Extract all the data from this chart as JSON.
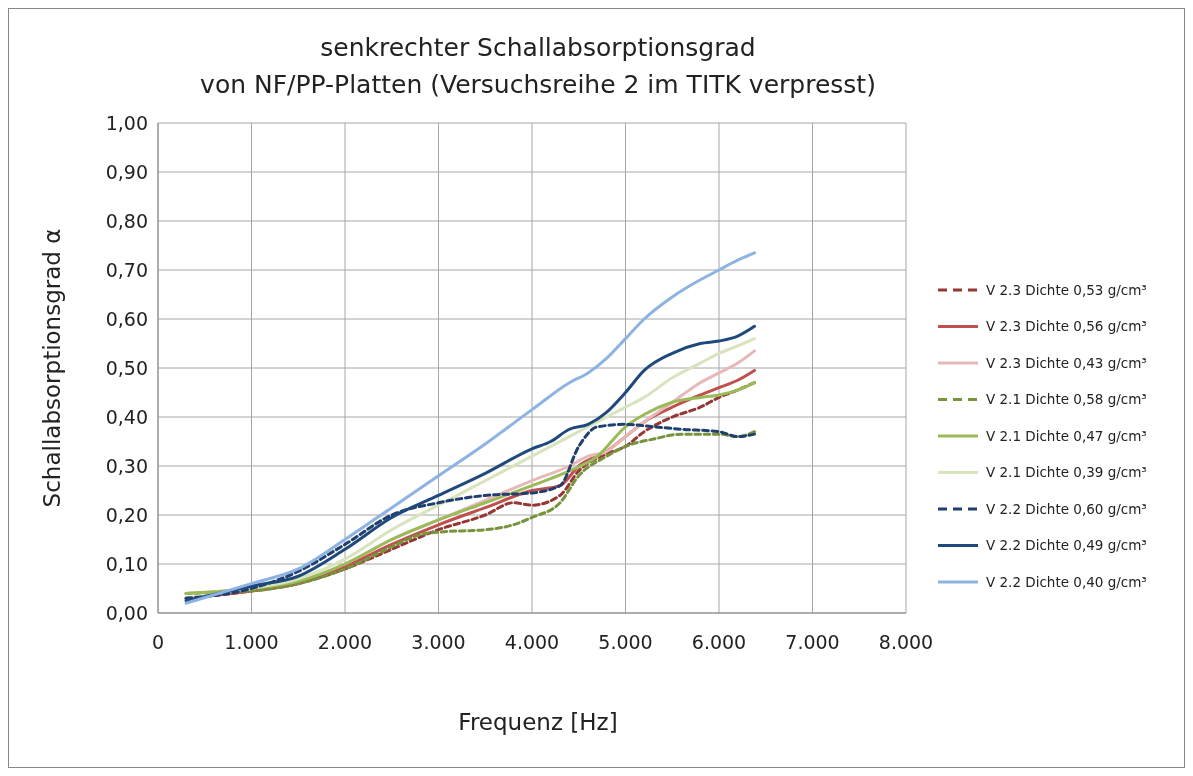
{
  "chart_data": {
    "type": "line",
    "title": "senkrechter Schallabsorptionsgrad\nvon NF/PP-Platten (Versuchsreihe 2 im TITK verpresst)",
    "xlabel": "Frequenz [Hz]",
    "ylabel": "Schallabsorptionsgrad  α",
    "xlim": [
      0,
      8000
    ],
    "xticks": [
      {
        "value": 0,
        "label": "0"
      },
      {
        "value": 1000,
        "label": "1.000"
      },
      {
        "value": 2000,
        "label": "2.000"
      },
      {
        "value": 3000,
        "label": "3.000"
      },
      {
        "value": 4000,
        "label": "4.000"
      },
      {
        "value": 5000,
        "label": "5.000"
      },
      {
        "value": 6000,
        "label": "6.000"
      },
      {
        "value": 7000,
        "label": "7.000"
      },
      {
        "value": 8000,
        "label": "8.000"
      }
    ],
    "ylim": [
      0,
      1
    ],
    "yticks": [
      {
        "value": 0,
        "label": "0,00"
      },
      {
        "value": 0.1,
        "label": "0,10"
      },
      {
        "value": 0.2,
        "label": "0,20"
      },
      {
        "value": 0.3,
        "label": "0,30"
      },
      {
        "value": 0.4,
        "label": "0,40"
      },
      {
        "value": 0.5,
        "label": "0,50"
      },
      {
        "value": 0.6,
        "label": "0,60"
      },
      {
        "value": 0.7,
        "label": "0,70"
      },
      {
        "value": 0.8,
        "label": "0,80"
      },
      {
        "value": 0.9,
        "label": "0,90"
      },
      {
        "value": 1,
        "label": "1,00"
      }
    ],
    "grid": true,
    "legend": "right",
    "marker": "none",
    "series": [
      {
        "name": "V 2.3 Dichte 0,53 g/cm³",
        "color": "#953735",
        "line_style": "dashed",
        "x": [
          300,
          1000,
          1500,
          2000,
          2500,
          3000,
          3500,
          3800,
          4000,
          4300,
          4500,
          4800,
          5000,
          5200,
          5500,
          5800,
          6000,
          6200,
          6380
        ],
        "values": [
          0.03,
          0.045,
          0.06,
          0.09,
          0.13,
          0.17,
          0.2,
          0.225,
          0.22,
          0.24,
          0.29,
          0.325,
          0.34,
          0.37,
          0.4,
          0.42,
          0.44,
          0.455,
          0.47
        ]
      },
      {
        "name": "V 2.3 Dichte 0,56 g/cm³",
        "color": "#c0504d",
        "line_style": "solid",
        "x": [
          300,
          1000,
          1500,
          2000,
          2500,
          3000,
          3500,
          4000,
          4300,
          4500,
          4800,
          5000,
          5200,
          5500,
          5800,
          6000,
          6200,
          6380
        ],
        "values": [
          0.03,
          0.045,
          0.06,
          0.095,
          0.14,
          0.18,
          0.215,
          0.25,
          0.26,
          0.3,
          0.33,
          0.36,
          0.39,
          0.42,
          0.445,
          0.46,
          0.475,
          0.495
        ]
      },
      {
        "name": "V 2.3 Dichte 0,43 g/cm³",
        "color": "#e6b9b8",
        "line_style": "solid",
        "x": [
          300,
          1000,
          1500,
          2000,
          2500,
          3000,
          3500,
          4000,
          4400,
          4600,
          4800,
          5000,
          5200,
          5500,
          5800,
          6000,
          6200,
          6380
        ],
        "values": [
          0.04,
          0.05,
          0.065,
          0.1,
          0.15,
          0.19,
          0.23,
          0.27,
          0.3,
          0.32,
          0.33,
          0.36,
          0.39,
          0.43,
          0.47,
          0.49,
          0.51,
          0.535
        ]
      },
      {
        "name": "V 2.1 Dichte 0,58 g/cm³",
        "color": "#77933c",
        "line_style": "dashed",
        "x": [
          300,
          1000,
          1500,
          2000,
          2500,
          2800,
          3000,
          3500,
          3800,
          4000,
          4300,
          4500,
          4800,
          5000,
          5300,
          5600,
          6000,
          6200,
          6380
        ],
        "values": [
          0.04,
          0.045,
          0.06,
          0.09,
          0.135,
          0.16,
          0.165,
          0.17,
          0.18,
          0.195,
          0.225,
          0.28,
          0.32,
          0.34,
          0.355,
          0.365,
          0.365,
          0.36,
          0.37
        ]
      },
      {
        "name": "V 2.1 Dichte 0,47 g/cm³",
        "color": "#9bbb59",
        "line_style": "solid",
        "x": [
          300,
          1000,
          1500,
          2000,
          2500,
          3000,
          3500,
          4000,
          4400,
          4700,
          5000,
          5200,
          5500,
          5800,
          6000,
          6200,
          6380
        ],
        "values": [
          0.04,
          0.05,
          0.065,
          0.1,
          0.15,
          0.19,
          0.225,
          0.26,
          0.29,
          0.32,
          0.38,
          0.405,
          0.43,
          0.44,
          0.445,
          0.455,
          0.47
        ]
      },
      {
        "name": "V 2.1 Dichte 0,39 g/cm³",
        "color": "#d7e4bd",
        "line_style": "solid",
        "x": [
          300,
          1000,
          1500,
          2000,
          2500,
          3000,
          3500,
          4000,
          4500,
          4800,
          5000,
          5200,
          5500,
          5800,
          6000,
          6200,
          6380
        ],
        "values": [
          0.03,
          0.05,
          0.07,
          0.11,
          0.17,
          0.22,
          0.27,
          0.32,
          0.37,
          0.4,
          0.42,
          0.44,
          0.48,
          0.51,
          0.53,
          0.545,
          0.56
        ]
      },
      {
        "name": "V 2.2 Dichte 0,60 g/cm³",
        "color": "#1f3f6e",
        "line_style": "dashed",
        "x": [
          300,
          1000,
          1500,
          2000,
          2500,
          3000,
          3500,
          4000,
          4300,
          4500,
          4700,
          5000,
          5300,
          5600,
          6000,
          6200,
          6380
        ],
        "values": [
          0.03,
          0.05,
          0.085,
          0.14,
          0.2,
          0.225,
          0.24,
          0.245,
          0.26,
          0.34,
          0.38,
          0.385,
          0.38,
          0.375,
          0.37,
          0.36,
          0.365
        ]
      },
      {
        "name": "V 2.2 Dichte 0,49 g/cm³",
        "color": "#1f497d",
        "line_style": "solid",
        "x": [
          300,
          1000,
          1500,
          2000,
          2500,
          3000,
          3500,
          4000,
          4200,
          4400,
          4600,
          4800,
          5000,
          5200,
          5500,
          5800,
          6000,
          6200,
          6380
        ],
        "values": [
          0.025,
          0.055,
          0.075,
          0.13,
          0.195,
          0.24,
          0.285,
          0.335,
          0.35,
          0.375,
          0.385,
          0.41,
          0.45,
          0.495,
          0.53,
          0.55,
          0.555,
          0.565,
          0.585
        ]
      },
      {
        "name": "V 2.2 Dichte 0,40 g/cm³",
        "color": "#8db3e2",
        "line_style": "solid",
        "x": [
          300,
          1000,
          1500,
          2000,
          2500,
          3000,
          3500,
          4000,
          4400,
          4600,
          4800,
          5000,
          5200,
          5500,
          5800,
          6000,
          6200,
          6380
        ],
        "values": [
          0.02,
          0.06,
          0.09,
          0.15,
          0.215,
          0.28,
          0.345,
          0.415,
          0.47,
          0.49,
          0.52,
          0.56,
          0.6,
          0.645,
          0.68,
          0.7,
          0.72,
          0.735
        ]
      }
    ]
  }
}
